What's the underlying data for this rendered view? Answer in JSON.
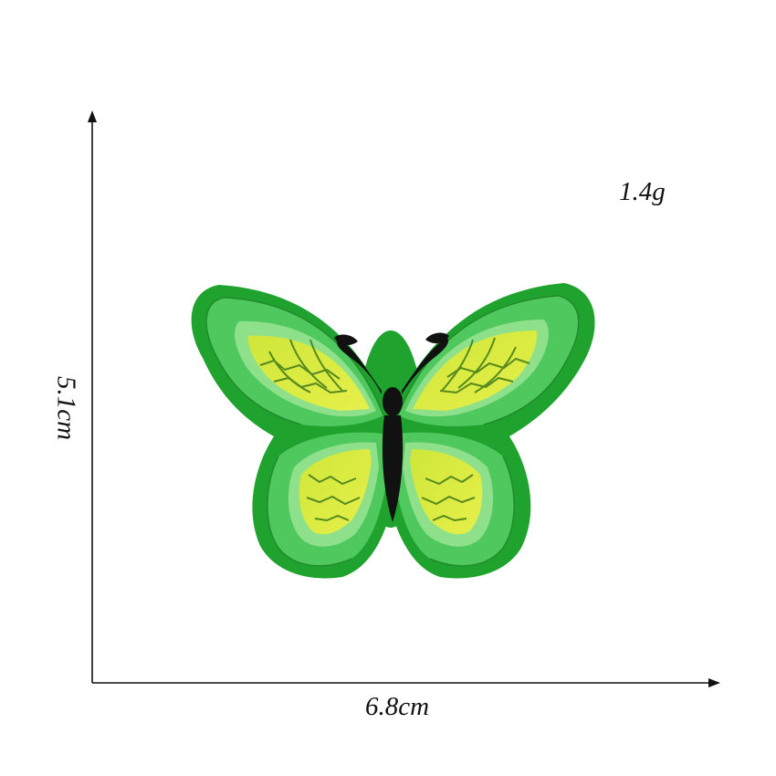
{
  "product": {
    "weight": "1.4g",
    "width": "6.8cm",
    "height": "5.1cm",
    "subject": "butterfly-patch"
  },
  "colors": {
    "background": "#ffffff",
    "axis": "#111111",
    "felt_border": "#1fa32e",
    "satin_green": "#5cd26a",
    "light_green": "#8fe08a",
    "wing_yellow": "#d7ec3a",
    "vein": "#3f7a19",
    "body": "#111111"
  }
}
